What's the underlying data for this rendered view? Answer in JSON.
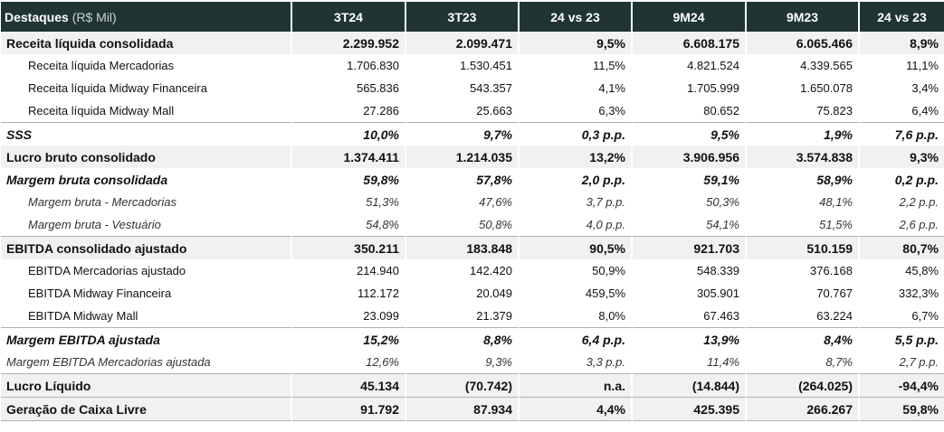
{
  "table": {
    "header": {
      "label": "Destaques",
      "unit": "(R$ Mil)",
      "columns": [
        "3T24",
        "3T23",
        "24 vs 23",
        "9M24",
        "9M23",
        "24 vs 23"
      ]
    },
    "rows": [
      {
        "label": "Receita líquida consolidada",
        "values": [
          "2.299.952",
          "2.099.471",
          "9,5%",
          "6.608.175",
          "6.065.466",
          "8,9%"
        ]
      },
      {
        "label": "Receita líquida Mercadorias",
        "values": [
          "1.706.830",
          "1.530.451",
          "11,5%",
          "4.821.524",
          "4.339.565",
          "11,1%"
        ]
      },
      {
        "label": "Receita líquida Midway Financeira",
        "values": [
          "565.836",
          "543.357",
          "4,1%",
          "1.705.999",
          "1.650.078",
          "3,4%"
        ]
      },
      {
        "label": "Receita líquida Midway Mall",
        "values": [
          "27.286",
          "25.663",
          "6,3%",
          "80.652",
          "75.823",
          "6,4%"
        ]
      },
      {
        "label": "SSS",
        "values": [
          "10,0%",
          "9,7%",
          "0,3 p.p.",
          "9,5%",
          "1,9%",
          "7,6 p.p."
        ]
      },
      {
        "label": "Lucro bruto consolidado",
        "values": [
          "1.374.411",
          "1.214.035",
          "13,2%",
          "3.906.956",
          "3.574.838",
          "9,3%"
        ]
      },
      {
        "label": "Margem bruta consolidada",
        "values": [
          "59,8%",
          "57,8%",
          "2,0 p.p.",
          "59,1%",
          "58,9%",
          "0,2 p.p."
        ]
      },
      {
        "label": "Margem bruta - Mercadorias",
        "values": [
          "51,3%",
          "47,6%",
          "3,7 p.p.",
          "50,3%",
          "48,1%",
          "2,2 p.p."
        ]
      },
      {
        "label": "Margem bruta - Vestuário",
        "values": [
          "54,8%",
          "50,8%",
          "4,0 p.p.",
          "54,1%",
          "51,5%",
          "2,6 p.p."
        ]
      },
      {
        "label": "EBITDA consolidado ajustado",
        "values": [
          "350.211",
          "183.848",
          "90,5%",
          "921.703",
          "510.159",
          "80,7%"
        ]
      },
      {
        "label": "EBITDA Mercadorias ajustado",
        "values": [
          "214.940",
          "142.420",
          "50,9%",
          "548.339",
          "376.168",
          "45,8%"
        ]
      },
      {
        "label": "EBITDA Midway Financeira",
        "values": [
          "112.172",
          "20.049",
          "459,5%",
          "305.901",
          "70.767",
          "332,3%"
        ]
      },
      {
        "label": "EBITDA Midway Mall",
        "values": [
          "23.099",
          "21.379",
          "8,0%",
          "67.463",
          "63.224",
          "6,7%"
        ]
      },
      {
        "label": "Margem EBITDA ajustada",
        "values": [
          "15,2%",
          "8,8%",
          "6,4 p.p.",
          "13,9%",
          "8,4%",
          "5,5 p.p."
        ]
      },
      {
        "label": "Margem EBITDA Mercadorias ajustada",
        "values": [
          "12,6%",
          "9,3%",
          "3,3 p.p.",
          "11,4%",
          "8,7%",
          "2,7 p.p."
        ]
      },
      {
        "label": "Lucro Líquido",
        "values": [
          "45.134",
          "(70.742)",
          "n.a.",
          "(14.844)",
          "(264.025)",
          "-94,4%"
        ]
      },
      {
        "label": "Geração de Caixa Livre",
        "values": [
          "91.792",
          "87.934",
          "4,4%",
          "425.395",
          "266.267",
          "59,8%"
        ]
      }
    ]
  }
}
